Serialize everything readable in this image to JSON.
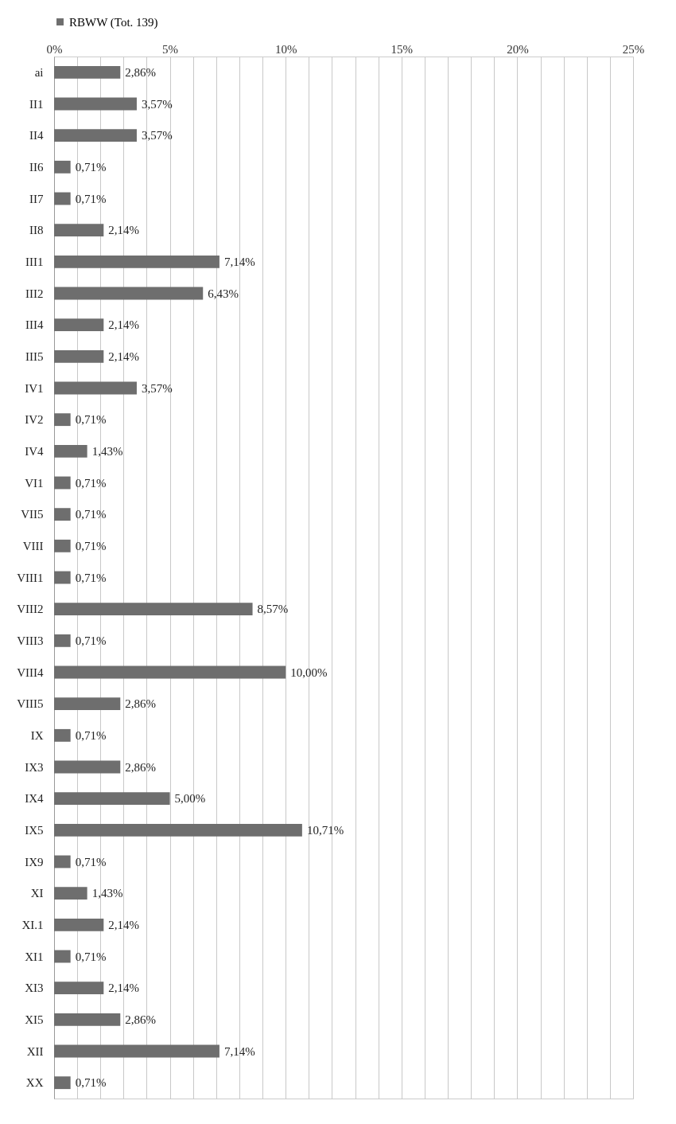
{
  "chart_data": {
    "type": "bar",
    "orientation": "horizontal",
    "categories": [
      "ai",
      "II1",
      "II4",
      "II6",
      "II7",
      "II8",
      "III1",
      "III2",
      "III4",
      "III5",
      "IV1",
      "IV2",
      "IV4",
      "VI1",
      "VII5",
      "VIII",
      "VIII1",
      "VIII2",
      "VIII3",
      "VIII4",
      "VIII5",
      "IX",
      "IX3",
      "IX4",
      "IX5",
      "IX9",
      "XI",
      "XI.1",
      "XI1",
      "XI3",
      "XI5",
      "XII",
      "XX"
    ],
    "series": [
      {
        "name": "RBWW (Tot. 139)",
        "color": "#6e6e6e",
        "values": [
          2.86,
          3.57,
          3.57,
          0.71,
          0.71,
          2.14,
          7.14,
          6.43,
          2.14,
          2.14,
          3.57,
          0.71,
          1.43,
          0.71,
          0.71,
          0.71,
          0.71,
          8.57,
          0.71,
          10.0,
          2.86,
          0.71,
          2.86,
          5.0,
          10.71,
          0.71,
          1.43,
          2.14,
          0.71,
          2.14,
          2.86,
          7.14,
          0.71
        ],
        "value_labels": [
          "2,86%",
          "3,57%",
          "3,57%",
          "0,71%",
          "0,71%",
          "2,14%",
          "7,14%",
          "6,43%",
          "2,14%",
          "2,14%",
          "3,57%",
          "0,71%",
          "1,43%",
          "0,71%",
          "0,71%",
          "0,71%",
          "0,71%",
          "8,57%",
          "0,71%",
          "10,00%",
          "2,86%",
          "0,71%",
          "2,86%",
          "5,00%",
          "10,71%",
          "0,71%",
          "1,43%",
          "2,14%",
          "0,71%",
          "2,14%",
          "2,86%",
          "7,14%",
          "0,71%"
        ]
      }
    ],
    "xlim": [
      0,
      25
    ],
    "xticks": [
      {
        "value": 0,
        "label": "0%"
      },
      {
        "value": 1,
        "label": null
      },
      {
        "value": 2,
        "label": null
      },
      {
        "value": 3,
        "label": null
      },
      {
        "value": 4,
        "label": null
      },
      {
        "value": 5,
        "label": "5%"
      },
      {
        "value": 6,
        "label": null
      },
      {
        "value": 7,
        "label": null
      },
      {
        "value": 8,
        "label": null
      },
      {
        "value": 9,
        "label": null
      },
      {
        "value": 10,
        "label": "10%"
      },
      {
        "value": 11,
        "label": null
      },
      {
        "value": 12,
        "label": null
      },
      {
        "value": 13,
        "label": null
      },
      {
        "value": 14,
        "label": null
      },
      {
        "value": 15,
        "label": "15%"
      },
      {
        "value": 16,
        "label": null
      },
      {
        "value": 17,
        "label": null
      },
      {
        "value": 18,
        "label": null
      },
      {
        "value": 19,
        "label": null
      },
      {
        "value": 20,
        "label": "20%"
      },
      {
        "value": 21,
        "label": null
      },
      {
        "value": 22,
        "label": null
      },
      {
        "value": 23,
        "label": null
      },
      {
        "value": 24,
        "label": null
      },
      {
        "value": 25,
        "label": "25%"
      }
    ],
    "grid": true,
    "legend": "top"
  }
}
